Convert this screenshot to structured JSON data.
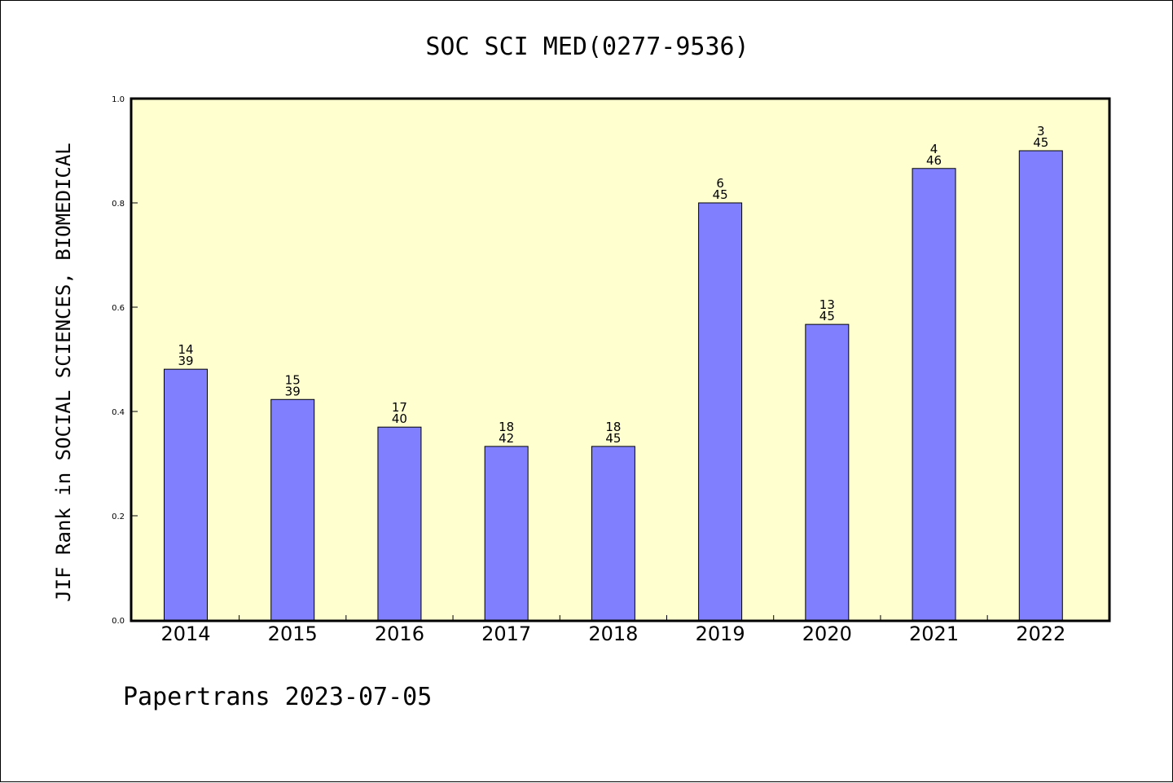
{
  "footer_text": "Papertrans 2023-07-05",
  "chart_data": {
    "type": "bar",
    "title": "SOC SCI MED(0277-9536)",
    "ylabel": "JIF Rank in SOCIAL SCIENCES, BIOMEDICAL",
    "xlabel": "",
    "ylim": [
      0,
      1.0
    ],
    "yticks": [
      "0.0",
      "0.2",
      "0.4",
      "0.6",
      "0.8",
      "1.0"
    ],
    "categories": [
      "2014",
      "2015",
      "2016",
      "2017",
      "2018",
      "2019",
      "2020",
      "2021",
      "2022"
    ],
    "values": [
      0.481,
      0.423,
      0.37,
      0.333,
      0.333,
      0.8,
      0.567,
      0.866,
      0.9
    ],
    "rank_labels": [
      "14",
      "15",
      "17",
      "18",
      "18",
      "6",
      "13",
      "4",
      "3"
    ],
    "total_labels": [
      "39",
      "39",
      "40",
      "42",
      "45",
      "45",
      "45",
      "46",
      "45"
    ],
    "colors": {
      "plot_background": "#ffffd0",
      "bar_fill": "#8080ff",
      "bar_stroke": "#000000"
    },
    "grid": false,
    "legend": "none"
  }
}
